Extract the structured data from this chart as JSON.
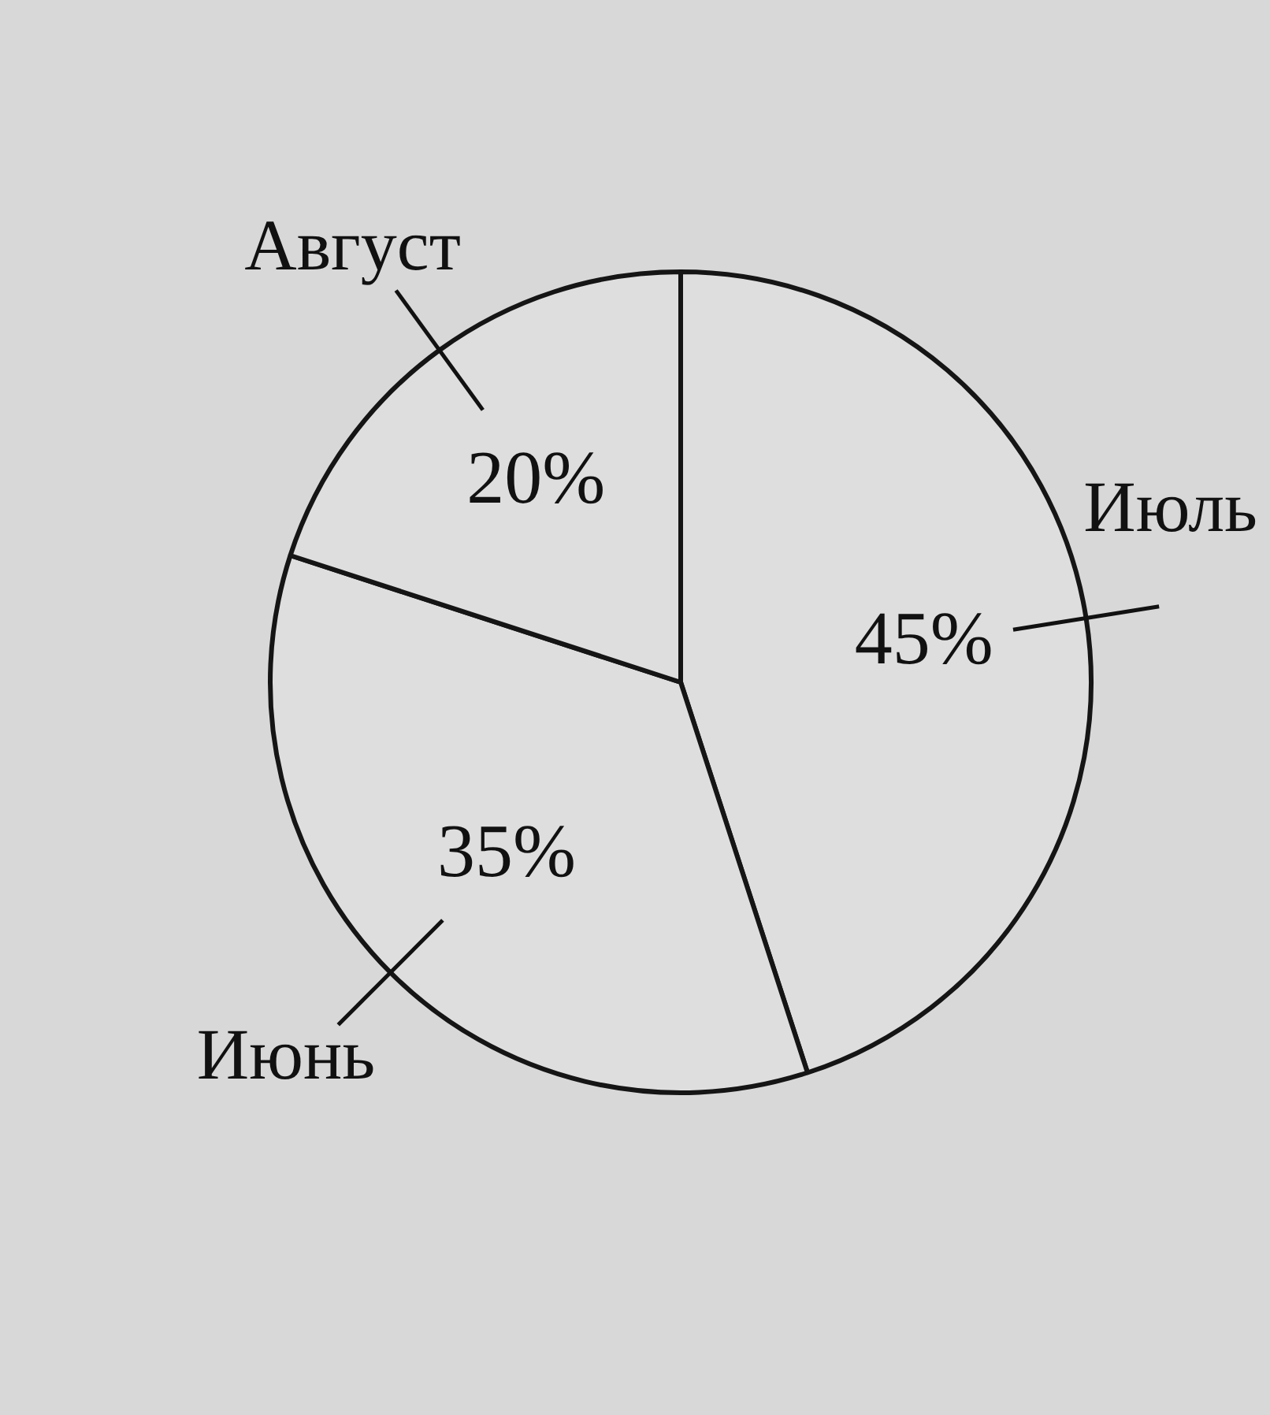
{
  "chart_data": {
    "type": "pie",
    "categories": [
      "Июль",
      "Июнь",
      "Август"
    ],
    "values": [
      45,
      35,
      20
    ],
    "colors": [
      "#dedede",
      "#dedede",
      "#dedede"
    ],
    "value_labels": [
      "45%",
      "35%",
      "20%"
    ],
    "legend": false
  }
}
